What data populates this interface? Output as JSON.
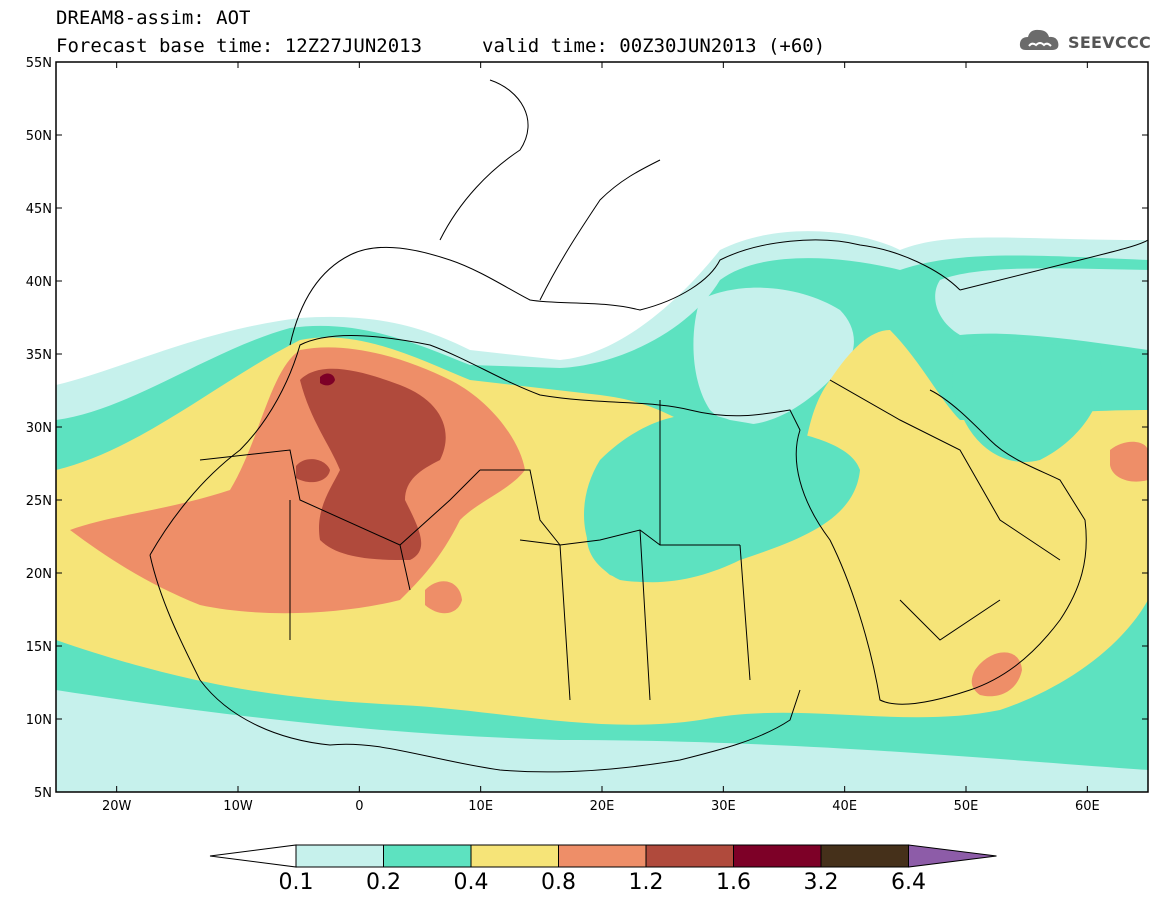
{
  "header": {
    "line1": "DREAM8-assim: AOT",
    "line2_left": "Forecast base time: 12Z27JUN2013",
    "line2_right": "valid time: 00Z30JUN2013 (+60)"
  },
  "logo": {
    "text": "SEEVCCC",
    "icon": "cloud-icon"
  },
  "map": {
    "lon_range": [
      -25,
      65
    ],
    "lat_range": [
      5,
      55
    ],
    "lon_ticks": [
      {
        "lon": -20,
        "label": "20W"
      },
      {
        "lon": -10,
        "label": "10W"
      },
      {
        "lon": 0,
        "label": "0"
      },
      {
        "lon": 10,
        "label": "10E"
      },
      {
        "lon": 20,
        "label": "20E"
      },
      {
        "lon": 30,
        "label": "30E"
      },
      {
        "lon": 40,
        "label": "40E"
      },
      {
        "lon": 50,
        "label": "50E"
      },
      {
        "lon": 60,
        "label": "60E"
      }
    ],
    "lat_ticks": [
      {
        "lat": 55,
        "label": "55N"
      },
      {
        "lat": 50,
        "label": "50N"
      },
      {
        "lat": 45,
        "label": "45N"
      },
      {
        "lat": 40,
        "label": "40N"
      },
      {
        "lat": 35,
        "label": "35N"
      },
      {
        "lat": 30,
        "label": "30N"
      },
      {
        "lat": 25,
        "label": "25N"
      },
      {
        "lat": 20,
        "label": "20N"
      },
      {
        "lat": 15,
        "label": "15N"
      },
      {
        "lat": 10,
        "label": "10N"
      },
      {
        "lat": 5,
        "label": "5N"
      }
    ]
  },
  "colorbar": {
    "levels": [
      "0.1",
      "0.2",
      "0.4",
      "0.8",
      "1.2",
      "1.6",
      "3.2",
      "6.4"
    ],
    "colors": [
      "#c6f1ec",
      "#5de2c0",
      "#f6e478",
      "#ee8e68",
      "#b04a3c",
      "#7d0027",
      "#45301a"
    ],
    "under_color": "#ffffff",
    "over_color": "#8d5ca8"
  },
  "palette": {
    "c01": "#c6f1ec",
    "c02": "#5de2c0",
    "c04": "#f6e478",
    "c08": "#ee8e68",
    "c12": "#b04a3c",
    "c16": "#7d0027"
  }
}
